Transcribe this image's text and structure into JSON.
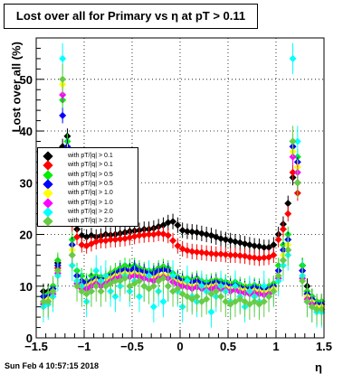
{
  "chart_data": {
    "type": "scatter",
    "title": "Lost over all for Primary vs  η at pT > 0.11",
    "xlabel": "η",
    "ylabel": "Lost over all (%)",
    "xlim": [
      -1.5,
      1.5
    ],
    "ylim": [
      0,
      58
    ],
    "x_ticks": [
      "−1.5",
      "−1",
      "−0.5",
      "0",
      "0.5",
      "1",
      "1.5"
    ],
    "y_ticks": [
      "0",
      "10",
      "20",
      "30",
      "40",
      "50"
    ],
    "grid": true,
    "legend_position": "left",
    "x": [
      -1.425,
      -1.375,
      -1.325,
      -1.275,
      -1.225,
      -1.175,
      -1.125,
      -1.075,
      -1.025,
      -0.975,
      -0.925,
      -0.875,
      -0.825,
      -0.775,
      -0.725,
      -0.675,
      -0.625,
      -0.575,
      -0.525,
      -0.475,
      -0.425,
      -0.375,
      -0.325,
      -0.275,
      -0.225,
      -0.175,
      -0.125,
      -0.075,
      -0.025,
      0.025,
      0.075,
      0.125,
      0.175,
      0.225,
      0.275,
      0.325,
      0.375,
      0.425,
      0.475,
      0.525,
      0.575,
      0.625,
      0.675,
      0.725,
      0.775,
      0.825,
      0.875,
      0.925,
      0.975,
      1.025,
      1.075,
      1.125,
      1.175,
      1.225,
      1.275,
      1.325,
      1.375,
      1.425,
      1.475
    ],
    "series": [
      {
        "name": "with pT/|q| > 0.1",
        "color": "#000000",
        "values": [
          9,
          9,
          10,
          14.5,
          37,
          39,
          25,
          21,
          19.8,
          19.5,
          19.8,
          19.5,
          19.7,
          20,
          19.9,
          20,
          20.2,
          20.4,
          20.6,
          20.7,
          20.8,
          21,
          21,
          21.2,
          21.5,
          21.8,
          22.3,
          22.5,
          21.8,
          20.8,
          20.6,
          20.5,
          20.4,
          20.2,
          20,
          19.8,
          19.5,
          19.2,
          19,
          18.8,
          18.6,
          18.4,
          18.2,
          18,
          17.8,
          17.7,
          17.5,
          17.5,
          18,
          20,
          22,
          26,
          31,
          30,
          14,
          10,
          8,
          7,
          7
        ]
      },
      {
        "name": "with pT/|q| > 0.1",
        "color": "#ff0000",
        "values": [
          7,
          7.5,
          9,
          13.5,
          34,
          36,
          22,
          19.5,
          18,
          17.8,
          18.2,
          18.6,
          18.8,
          18.8,
          19,
          19,
          19.1,
          19.2,
          19.4,
          19.6,
          19.8,
          19.9,
          20,
          20,
          20.2,
          20.1,
          19.8,
          18.8,
          17.8,
          17.2,
          16.9,
          16.7,
          16.6,
          16.5,
          16.4,
          16.3,
          16.2,
          16.2,
          16.1,
          16,
          16,
          15.9,
          15.8,
          15.6,
          15.5,
          15.4,
          15.5,
          15.6,
          16,
          19,
          21,
          24,
          32,
          28,
          13,
          9,
          7,
          6.5,
          6.5
        ]
      },
      {
        "name": "with pT/|q| > 0.5",
        "color": "#00ee00",
        "values": [
          8,
          8.5,
          10,
          15,
          46,
          38,
          19,
          13,
          12,
          11,
          12,
          12,
          11.8,
          12,
          12.5,
          13,
          13.5,
          14,
          13.8,
          14,
          13.5,
          13.2,
          13,
          13,
          13.5,
          13.8,
          13.5,
          12.5,
          11.8,
          11.5,
          11.5,
          11.2,
          11.5,
          11,
          10.8,
          11,
          11.2,
          11,
          10.8,
          10.5,
          10.8,
          10.3,
          10,
          10,
          10.2,
          10,
          9.8,
          10,
          10.5,
          14,
          18,
          20,
          38,
          35,
          14,
          9,
          8,
          7,
          7
        ]
      },
      {
        "name": "with pT/|q| > 0.5",
        "color": "#0000ff",
        "values": [
          8,
          8,
          9.5,
          14,
          43,
          37,
          18,
          12,
          11,
          10.5,
          11,
          11.5,
          11.2,
          11.5,
          12,
          12.5,
          13,
          13.2,
          13,
          13.5,
          13,
          12.8,
          12.5,
          12.5,
          13,
          13.2,
          13,
          12,
          11.5,
          11,
          11,
          10.8,
          11,
          10.5,
          10.2,
          10.5,
          10.8,
          10.5,
          10.3,
          10,
          10.2,
          9.8,
          9.5,
          9.5,
          9.8,
          9.5,
          9.3,
          9.5,
          10,
          13,
          17,
          19,
          37,
          34,
          13,
          8.5,
          7.5,
          6.5,
          6.5
        ]
      },
      {
        "name": "with pT/|q| > 1.0",
        "color": "#ffff00",
        "values": [
          7,
          7.5,
          9,
          13,
          49,
          36,
          17,
          11,
          10,
          10,
          10.5,
          11,
          10.5,
          11,
          11.5,
          12,
          12.2,
          12.5,
          12.3,
          12.5,
          12.2,
          12,
          11.8,
          11.5,
          12,
          12.2,
          12,
          11.2,
          10.8,
          10.5,
          10.3,
          10,
          10.2,
          10,
          9.8,
          10,
          10.2,
          10,
          9.8,
          9.5,
          9.8,
          9.3,
          9.2,
          9,
          9.2,
          9,
          8.8,
          9,
          9.5,
          12,
          16,
          18,
          36,
          33,
          12,
          8,
          7,
          6,
          6
        ]
      },
      {
        "name": "with pT/|q| > 1.0",
        "color": "#ff00ff",
        "values": [
          6.5,
          7,
          8.5,
          12.5,
          47,
          35,
          16,
          10.5,
          9.5,
          9.5,
          10,
          10.5,
          10,
          10.5,
          11,
          11.5,
          11.8,
          12,
          11.8,
          12,
          11.8,
          11.5,
          11.3,
          11,
          11.5,
          11.8,
          11.5,
          10.8,
          10.3,
          10,
          9.8,
          9.5,
          9.8,
          9.5,
          9.3,
          9.5,
          9.8,
          9.5,
          9.3,
          9,
          9.3,
          8.8,
          8.7,
          8.5,
          8.7,
          8.5,
          8.3,
          8.5,
          9,
          11.5,
          15,
          17,
          35,
          32,
          11.5,
          7.5,
          6.5,
          5.5,
          5.5
        ]
      },
      {
        "name": "with pT/|q| > 2.0",
        "color": "#00ffff",
        "values": [
          6,
          6.5,
          8,
          12,
          54,
          33,
          14,
          11,
          10,
          7,
          9,
          13,
          11,
          12,
          9,
          8,
          10,
          12,
          9,
          11,
          8,
          10,
          12,
          6,
          9,
          7,
          10,
          12,
          9,
          6,
          11,
          8,
          7,
          10,
          9,
          5,
          8,
          10,
          9,
          7,
          10,
          8,
          6,
          9,
          8,
          7,
          10,
          8,
          9,
          11,
          14,
          16,
          54,
          38,
          12,
          7,
          6,
          5,
          5
        ]
      },
      {
        "name": "with pT/|q| > 2.0",
        "color": "#66cc44",
        "values": [
          7,
          7,
          9,
          13,
          50,
          34,
          16,
          10,
          9,
          8.5,
          9,
          10,
          9,
          10,
          10.5,
          11,
          11,
          11.5,
          10,
          10.5,
          11,
          10,
          9.5,
          10,
          11,
          11.5,
          10,
          9,
          9.5,
          8.5,
          8,
          7.5,
          8,
          7,
          7.5,
          8.5,
          9,
          8,
          7,
          6.5,
          7,
          7.5,
          7,
          6.5,
          7,
          6.5,
          7,
          8,
          9,
          12,
          15,
          17,
          38,
          30,
          11,
          7,
          6,
          5.5,
          5.5
        ]
      }
    ]
  },
  "footer": "Sun Feb  4 10:57:15 2018"
}
